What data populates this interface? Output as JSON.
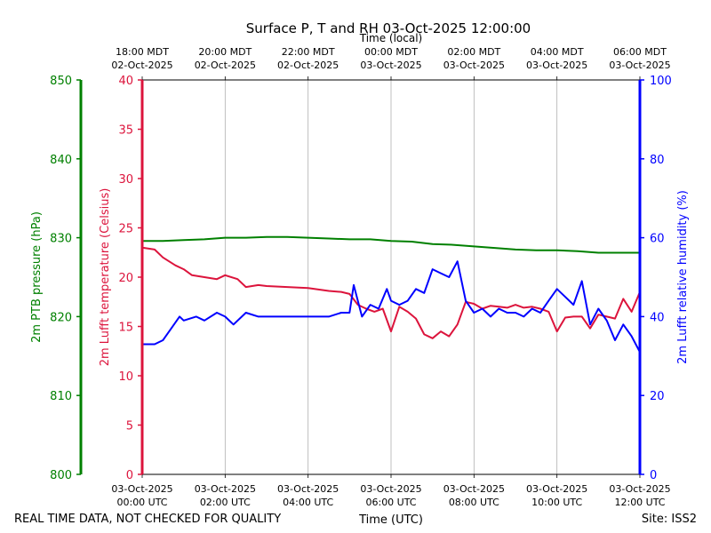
{
  "chart_data": {
    "type": "line",
    "title": "Surface P, T and RH 03-Oct-2025 12:00:00",
    "top_axis_label": "Time (local)",
    "xlabel": "Time (UTC)",
    "footer_left": "REAL TIME DATA, NOT CHECKED FOR QUALITY",
    "footer_right": "Site: ISS2",
    "x_range_hours_utc": [
      0,
      12
    ],
    "x_ticks": [
      {
        "hour": 0,
        "bottom_date": "03-Oct-2025",
        "bottom_time": "00:00 UTC",
        "top_time": "18:00 MDT",
        "top_date": "02-Oct-2025"
      },
      {
        "hour": 2,
        "bottom_date": "03-Oct-2025",
        "bottom_time": "02:00 UTC",
        "top_time": "20:00 MDT",
        "top_date": "02-Oct-2025"
      },
      {
        "hour": 4,
        "bottom_date": "03-Oct-2025",
        "bottom_time": "04:00 UTC",
        "top_time": "22:00 MDT",
        "top_date": "02-Oct-2025"
      },
      {
        "hour": 6,
        "bottom_date": "03-Oct-2025",
        "bottom_time": "06:00 UTC",
        "top_time": "00:00 MDT",
        "top_date": "03-Oct-2025"
      },
      {
        "hour": 8,
        "bottom_date": "03-Oct-2025",
        "bottom_time": "08:00 UTC",
        "top_time": "02:00 MDT",
        "top_date": "03-Oct-2025"
      },
      {
        "hour": 10,
        "bottom_date": "03-Oct-2025",
        "bottom_time": "10:00 UTC",
        "top_time": "04:00 MDT",
        "top_date": "03-Oct-2025"
      },
      {
        "hour": 12,
        "bottom_date": "03-Oct-2025",
        "bottom_time": "12:00 UTC",
        "top_time": "06:00 MDT",
        "top_date": "03-Oct-2025"
      }
    ],
    "axes": {
      "pressure": {
        "label": "2m PTB pressure (hPa)",
        "range": [
          800,
          850
        ],
        "ticks": [
          800,
          810,
          820,
          830,
          840,
          850
        ],
        "color": "#008000"
      },
      "temperature": {
        "label": "2m Lufft temperature (Celsius)",
        "range": [
          0,
          40
        ],
        "ticks": [
          0,
          5,
          10,
          15,
          20,
          25,
          30,
          35,
          40
        ],
        "color": "#dc143c"
      },
      "humidity": {
        "label": "2m Lufft relative humidity (%)",
        "range": [
          0,
          100
        ],
        "ticks": [
          0,
          20,
          40,
          60,
          80,
          100
        ],
        "color": "#0000ff"
      }
    },
    "series": [
      {
        "name": "2m PTB pressure",
        "axis": "pressure",
        "color": "#008000",
        "x": [
          0,
          0.5,
          1,
          1.5,
          2,
          2.5,
          3,
          3.5,
          4,
          4.5,
          5,
          5.5,
          6,
          6.5,
          7,
          7.5,
          8,
          8.5,
          9,
          9.5,
          10,
          10.5,
          11,
          11.5,
          12
        ],
        "y": [
          829.6,
          829.6,
          829.7,
          829.8,
          830.0,
          830.0,
          830.1,
          830.1,
          830.0,
          829.9,
          829.8,
          829.8,
          829.6,
          829.5,
          829.2,
          829.1,
          828.9,
          828.7,
          828.5,
          828.4,
          828.4,
          828.3,
          828.1,
          828.1,
          828.1
        ]
      },
      {
        "name": "2m Lufft temperature",
        "axis": "temperature",
        "color": "#dc143c",
        "x": [
          0,
          0.3,
          0.5,
          0.8,
          1.0,
          1.2,
          1.5,
          1.8,
          2.0,
          2.3,
          2.5,
          2.8,
          3.0,
          3.5,
          4.0,
          4.5,
          4.8,
          5.0,
          5.2,
          5.4,
          5.6,
          5.8,
          6.0,
          6.2,
          6.4,
          6.6,
          6.8,
          7.0,
          7.2,
          7.4,
          7.6,
          7.8,
          8.0,
          8.2,
          8.4,
          8.6,
          8.8,
          9.0,
          9.2,
          9.4,
          9.6,
          9.8,
          10.0,
          10.2,
          10.4,
          10.6,
          10.8,
          11.0,
          11.2,
          11.4,
          11.6,
          11.8,
          12.0
        ],
        "y": [
          23.0,
          22.8,
          22.0,
          21.2,
          20.8,
          20.2,
          20.0,
          19.8,
          20.2,
          19.8,
          19.0,
          19.2,
          19.1,
          19.0,
          18.9,
          18.6,
          18.5,
          18.3,
          17.2,
          16.8,
          16.5,
          16.8,
          14.5,
          17.0,
          16.5,
          15.8,
          14.2,
          13.8,
          14.5,
          14.0,
          15.2,
          17.5,
          17.3,
          16.8,
          17.1,
          17.0,
          16.9,
          17.2,
          16.9,
          17.0,
          16.8,
          16.5,
          14.5,
          15.9,
          16.0,
          16.0,
          14.8,
          16.2,
          16.0,
          15.8,
          17.8,
          16.5,
          18.5
        ]
      },
      {
        "name": "2m Lufft relative humidity",
        "axis": "humidity",
        "color": "#0000ff",
        "x": [
          0,
          0.3,
          0.5,
          0.7,
          0.9,
          1.0,
          1.3,
          1.5,
          1.8,
          2.0,
          2.2,
          2.5,
          2.8,
          3.0,
          3.5,
          4.0,
          4.5,
          4.8,
          5.0,
          5.1,
          5.3,
          5.5,
          5.7,
          5.9,
          6.0,
          6.2,
          6.4,
          6.6,
          6.8,
          7.0,
          7.2,
          7.4,
          7.6,
          7.8,
          8.0,
          8.2,
          8.4,
          8.6,
          8.8,
          9.0,
          9.2,
          9.4,
          9.6,
          9.8,
          10.0,
          10.2,
          10.4,
          10.6,
          10.8,
          11.0,
          11.2,
          11.4,
          11.6,
          11.8,
          12.0
        ],
        "y": [
          33,
          33,
          34,
          37,
          40,
          39,
          40,
          39,
          41,
          40,
          38,
          41,
          40,
          40,
          40,
          40,
          40,
          41,
          41,
          48,
          40,
          43,
          42,
          47,
          44,
          43,
          44,
          47,
          46,
          52,
          51,
          50,
          54,
          44,
          41,
          42,
          40,
          42,
          41,
          41,
          40,
          42,
          41,
          44,
          47,
          45,
          43,
          49,
          38,
          42,
          39,
          34,
          38,
          35,
          31
        ]
      }
    ]
  }
}
